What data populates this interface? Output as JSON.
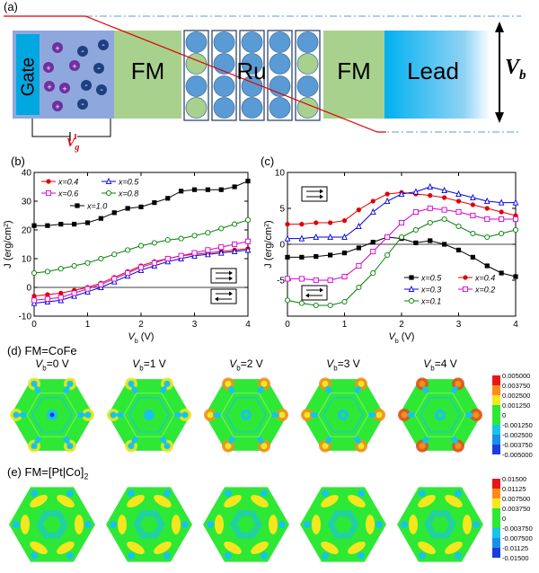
{
  "panel_a": {
    "label": "(a)",
    "blocks": {
      "gate": "Gate",
      "fm_left": "FM",
      "ru": "Ru",
      "fm_right": "FM",
      "lead": "Lead"
    },
    "vb_label": "V",
    "vb_sub": "b",
    "vg_label": "V",
    "vg_sub": "g",
    "colors": {
      "gate_bg": "#8ea8de",
      "gate": "#00a7e1",
      "fm": "#a9d18e",
      "ru_atom": "#5b9bd5",
      "lead": "#00b0f0",
      "cut_line": "#e00000"
    }
  },
  "panel_b": {
    "label": "(b)"
  },
  "panel_c": {
    "label": "(c)"
  },
  "panel_d": {
    "label": "(d) FM=CoFe",
    "maps": [
      {
        "title": "V",
        "sub": "b",
        "suffix": "=0 V"
      },
      {
        "title": "V",
        "sub": "b",
        "suffix": "=1 V"
      },
      {
        "title": "V",
        "sub": "b",
        "suffix": "=2 V"
      },
      {
        "title": "V",
        "sub": "b",
        "suffix": "=3 V"
      },
      {
        "title": "V",
        "sub": "b",
        "suffix": "=4 V"
      }
    ],
    "colorbar": [
      "0.005000",
      "0.003750",
      "0.002500",
      "0.001250",
      "0",
      "-0.001250",
      "-0.002500",
      "-0.003750",
      "-0.005000"
    ]
  },
  "panel_e": {
    "label_main": "(e) FM=[Pt|Co]",
    "label_sub": "2",
    "colorbar": [
      "0.01500",
      "0.01125",
      "0.007500",
      "0.003750",
      "0",
      "-0.003750",
      "-0.007500",
      "-0.01125",
      "-0.01500"
    ]
  },
  "chart_data": [
    {
      "type": "line",
      "panel": "(b)",
      "xlabel": "V_b (V)",
      "ylabel": "J (erg/cm²)",
      "xlim": [
        0,
        4
      ],
      "ylim": [
        -10,
        40
      ],
      "xticks": [
        0,
        1,
        2,
        3,
        4
      ],
      "yticks": [
        -10,
        0,
        10,
        20,
        30,
        40
      ],
      "legend": "top-left",
      "x": [
        0,
        0.25,
        0.5,
        0.75,
        1,
        1.25,
        1.5,
        1.75,
        2,
        2.25,
        2.5,
        2.75,
        3,
        3.25,
        3.5,
        3.75,
        4
      ],
      "series": [
        {
          "name": "x=0.4",
          "color": "#e00000",
          "marker": "filled-circle",
          "values": [
            -3,
            -2.5,
            -2,
            -1,
            0,
            1.5,
            3.5,
            5.5,
            7.5,
            9,
            10,
            11,
            11.5,
            12,
            12.5,
            13,
            13.5
          ]
        },
        {
          "name": "x=0.5",
          "color": "#0000e0",
          "marker": "open-triangle",
          "values": [
            -5.5,
            -5,
            -4.5,
            -3,
            -1.5,
            0,
            2,
            4,
            6,
            7.5,
            9,
            10,
            11,
            11.5,
            12,
            12.5,
            13
          ]
        },
        {
          "name": "x=0.6",
          "color": "#d000d0",
          "marker": "open-square",
          "values": [
            -4.5,
            -4,
            -3.5,
            -2,
            -0.5,
            1,
            3,
            5,
            7,
            8.5,
            10,
            11,
            12,
            13,
            14,
            15,
            16
          ]
        },
        {
          "name": "x=0.8",
          "color": "#008000",
          "marker": "open-circle",
          "values": [
            5,
            5.5,
            6.5,
            7.5,
            8.5,
            10,
            11.5,
            13,
            14.5,
            15.5,
            16.5,
            17,
            18,
            19,
            20.5,
            22,
            23.5
          ]
        },
        {
          "name": "x=1.0",
          "color": "#000000",
          "marker": "filled-square",
          "values": [
            21.5,
            21.5,
            22,
            22,
            22.5,
            24,
            26,
            27.5,
            28,
            29.5,
            31,
            33.5,
            34,
            34,
            34,
            35,
            37
          ]
        }
      ]
    },
    {
      "type": "line",
      "panel": "(c)",
      "xlabel": "V_b (V)",
      "ylabel": "J (erg/cm²)",
      "xlim": [
        0,
        4
      ],
      "ylim": [
        -10,
        10
      ],
      "xticks": [
        0,
        1,
        2,
        3,
        4
      ],
      "yticks": [
        -5,
        0,
        5,
        10
      ],
      "legend": "bottom-right",
      "x": [
        0,
        0.25,
        0.5,
        0.75,
        1,
        1.25,
        1.5,
        1.75,
        2,
        2.25,
        2.5,
        2.75,
        3,
        3.25,
        3.5,
        3.75,
        4
      ],
      "series": [
        {
          "name": "x=0.5",
          "color": "#000000",
          "marker": "filled-square",
          "values": [
            -1.8,
            -1.8,
            -1.7,
            -1.5,
            -1.2,
            -0.5,
            0.3,
            1,
            0.8,
            0.2,
            0.5,
            0,
            -0.8,
            -1.8,
            -3,
            -4,
            -4.5
          ]
        },
        {
          "name": "x=0.4",
          "color": "#e00000",
          "marker": "filled-circle",
          "values": [
            2.8,
            2.8,
            3,
            3,
            3.3,
            4.8,
            6,
            7,
            7.2,
            7,
            6.8,
            6.5,
            6,
            5.5,
            5,
            4.5,
            4
          ]
        },
        {
          "name": "x=0.3",
          "color": "#0000e0",
          "marker": "open-triangle",
          "values": [
            0.8,
            0.8,
            1,
            1,
            1,
            2.5,
            4.5,
            6,
            7,
            7.3,
            8,
            7.5,
            7,
            6.5,
            6,
            5.8,
            5.8
          ]
        },
        {
          "name": "x=0.2",
          "color": "#d000d0",
          "marker": "open-square",
          "values": [
            -4.8,
            -4.8,
            -5,
            -5,
            -4.5,
            -3,
            -1,
            1,
            3,
            4.5,
            5,
            4.8,
            4.5,
            4,
            3.5,
            3.5,
            3.5
          ]
        },
        {
          "name": "x=0.1",
          "color": "#008000",
          "marker": "open-circle",
          "values": [
            -7.8,
            -8.2,
            -8.5,
            -8.5,
            -8,
            -6,
            -4,
            -1.5,
            1,
            2,
            3,
            3.5,
            2.5,
            1.5,
            1,
            1.5,
            2
          ]
        }
      ]
    }
  ]
}
